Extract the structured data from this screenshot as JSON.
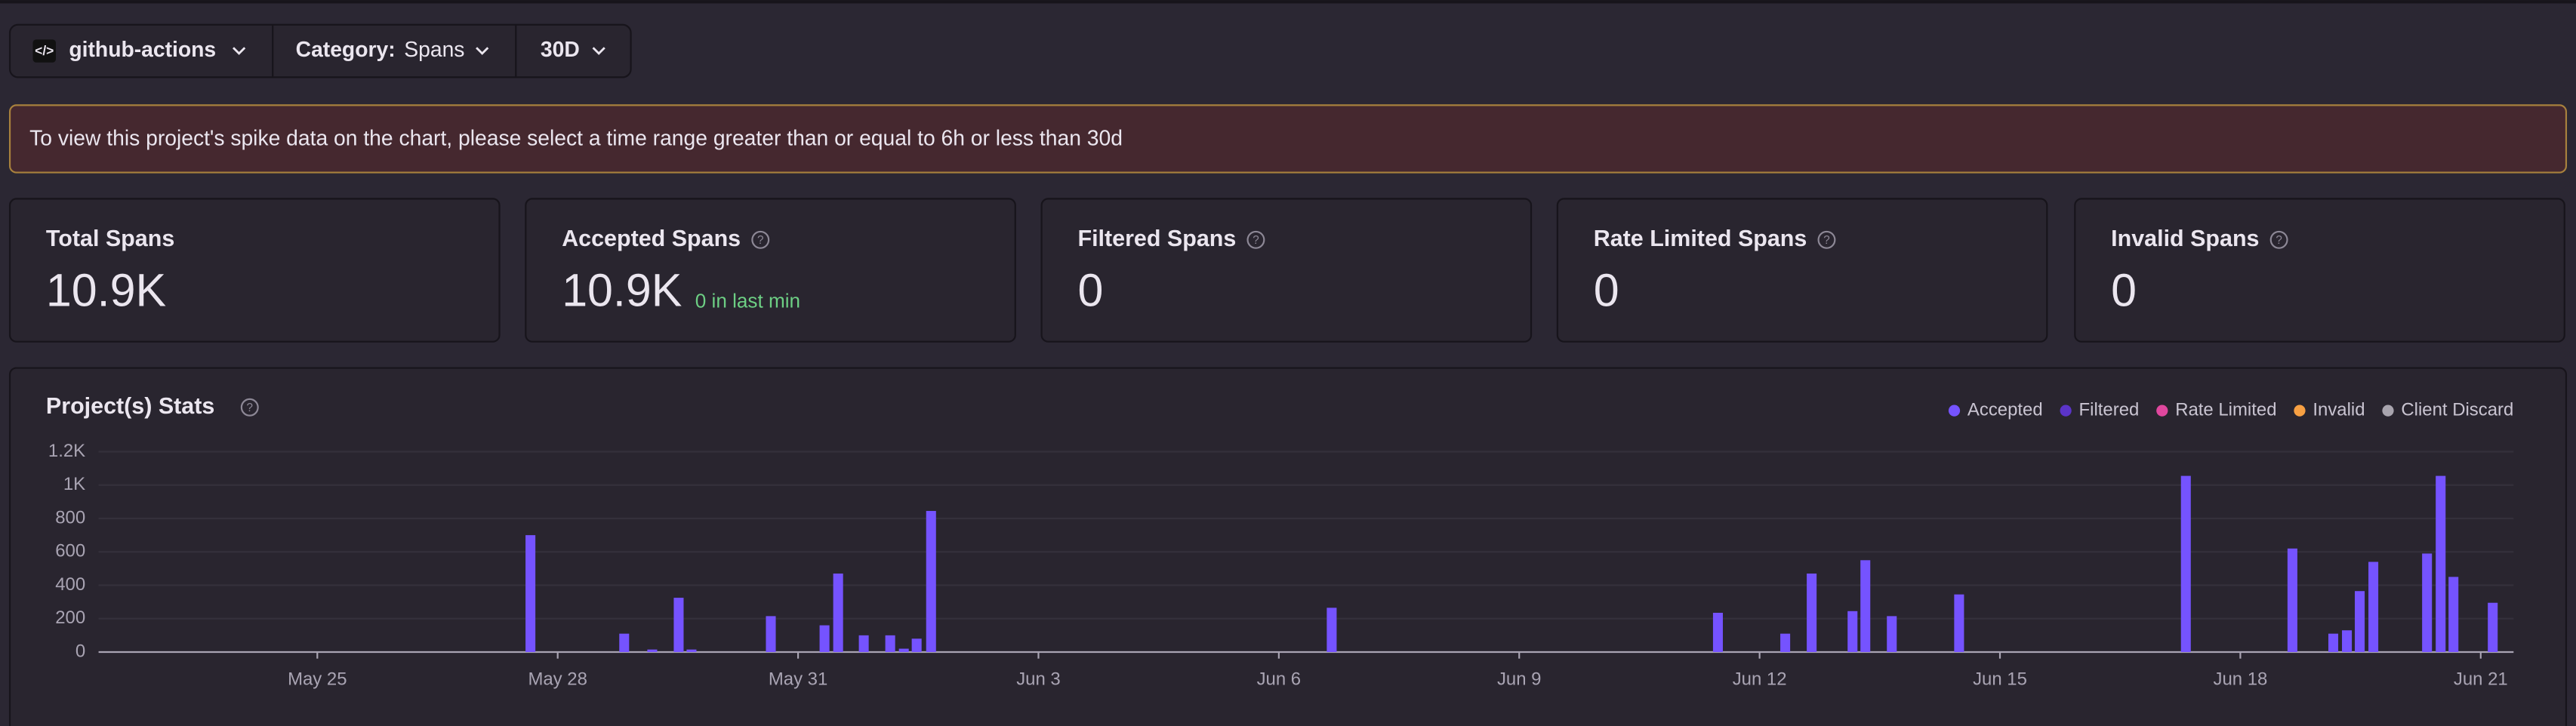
{
  "filters": {
    "project": "github-actions",
    "category_label": "Category:",
    "category": "Spans",
    "period": "30D"
  },
  "alert": "To view this project's spike data on the chart, please select a time range greater than or equal to 6h or less than 30d",
  "stats": [
    {
      "title": "Total Spans",
      "value": "10.9K"
    },
    {
      "title": "Accepted Spans",
      "value": "10.9K",
      "note": "0 in last min"
    },
    {
      "title": "Filtered Spans",
      "value": "0"
    },
    {
      "title": "Rate Limited Spans",
      "value": "0"
    },
    {
      "title": "Invalid Spans",
      "value": "0"
    }
  ],
  "chart_data": {
    "type": "bar",
    "title": "Project(s) Stats",
    "x": [
      147.66,
      148.83,
      149.18,
      149.51,
      149.67,
      150.66,
      151.33,
      151.5,
      151.82,
      152.15,
      152.32,
      152.48,
      152.66,
      157.66,
      162.48,
      163.32,
      163.65,
      164.16,
      164.32,
      164.65,
      165.49,
      168.32,
      169.65,
      170.16,
      170.33,
      170.49,
      170.66,
      171.33,
      171.5,
      171.66,
      172.15
    ],
    "series": [
      {
        "name": "Accepted",
        "color": "#7553ff",
        "values": [
          700,
          110,
          15,
          325,
          15,
          215,
          160,
          470,
          100,
          100,
          20,
          80,
          845,
          265,
          235,
          110,
          470,
          245,
          550,
          215,
          345,
          1055,
          620,
          110,
          130,
          365,
          540,
          590,
          1055,
          450,
          295
        ]
      },
      {
        "name": "Filtered",
        "color": "#5b34c8",
        "values": [
          0,
          0,
          0,
          0,
          0,
          0,
          0,
          0,
          0,
          0,
          0,
          0,
          0,
          0,
          0,
          0,
          0,
          0,
          0,
          0,
          0,
          0,
          0,
          0,
          0,
          0,
          0,
          0,
          0,
          0,
          0
        ]
      },
      {
        "name": "Rate Limited",
        "color": "#e0479e",
        "values": [
          0,
          0,
          0,
          0,
          0,
          0,
          0,
          0,
          0,
          0,
          0,
          0,
          0,
          0,
          0,
          0,
          0,
          0,
          0,
          0,
          0,
          0,
          0,
          0,
          0,
          0,
          0,
          0,
          0,
          0,
          0
        ]
      },
      {
        "name": "Invalid",
        "color": "#f7a043",
        "values": [
          0,
          0,
          0,
          0,
          0,
          0,
          0,
          0,
          0,
          0,
          0,
          0,
          0,
          0,
          0,
          0,
          0,
          0,
          0,
          0,
          0,
          0,
          0,
          0,
          0,
          0,
          0,
          0,
          0,
          0,
          0
        ]
      },
      {
        "name": "Client Discard",
        "color": "#a8a4ae",
        "values": [
          0,
          0,
          0,
          0,
          0,
          0,
          0,
          0,
          0,
          0,
          0,
          0,
          0,
          0,
          0,
          0,
          0,
          0,
          0,
          0,
          0,
          0,
          0,
          0,
          0,
          0,
          0,
          0,
          0,
          0,
          0
        ]
      }
    ],
    "xlim": [
      142.27,
      172.41
    ],
    "xticks": [
      {
        "value": 145,
        "label": "May 25"
      },
      {
        "value": 148,
        "label": "May 28"
      },
      {
        "value": 151,
        "label": "May 31"
      },
      {
        "value": 154,
        "label": "Jun 3"
      },
      {
        "value": 157,
        "label": "Jun 6"
      },
      {
        "value": 160,
        "label": "Jun 9"
      },
      {
        "value": 163,
        "label": "Jun 12"
      },
      {
        "value": 166,
        "label": "Jun 15"
      },
      {
        "value": 169,
        "label": "Jun 18"
      },
      {
        "value": 172,
        "label": "Jun 21"
      }
    ],
    "ylim": [
      0,
      1200
    ],
    "yticks": [
      0,
      200,
      400,
      600,
      800,
      {
        "value": 1000,
        "label": "1K"
      },
      {
        "value": 1200,
        "label": "1.2K"
      }
    ],
    "grid": true,
    "legend": "top-right"
  }
}
